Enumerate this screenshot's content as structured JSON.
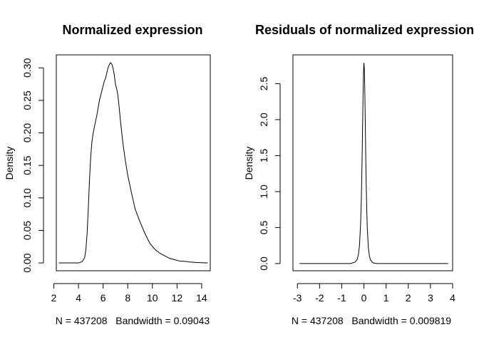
{
  "chart_data": [
    {
      "type": "line",
      "title": "Normalized expression",
      "xlabel": "N = 437208   Bandwidth = 0.09043",
      "ylabel": "Density",
      "xlim": [
        2.2,
        14.7
      ],
      "ylim": [
        -0.012,
        0.32
      ],
      "xticks": [
        2,
        4,
        6,
        8,
        10,
        12,
        14
      ],
      "xtick_labels": [
        "2",
        "4",
        "6",
        "8",
        "10",
        "12",
        "14"
      ],
      "yticks": [
        0,
        0.05,
        0.1,
        0.15,
        0.2,
        0.25,
        0.3
      ],
      "ytick_labels": [
        "0.00",
        "0.05",
        "0.10",
        "0.15",
        "0.20",
        "0.25",
        "0.30"
      ],
      "series": [
        {
          "name": "density",
          "x": [
            2.4,
            4.0,
            4.3,
            4.5,
            4.6,
            4.7,
            4.8,
            4.9,
            5.0,
            5.1,
            5.2,
            5.3,
            5.5,
            5.7,
            5.9,
            6.1,
            6.2,
            6.3,
            6.4,
            6.5,
            6.6,
            6.7,
            6.8,
            6.9,
            7.0,
            7.1,
            7.2,
            7.3,
            7.4,
            7.6,
            7.8,
            8.0,
            8.3,
            8.6,
            9.0,
            9.4,
            9.8,
            10.2,
            10.6,
            11.0,
            11.4,
            11.8,
            12.2,
            12.6,
            13.0,
            13.5,
            14.0,
            14.5
          ],
          "y": [
            0.0,
            0.0,
            0.002,
            0.008,
            0.02,
            0.045,
            0.085,
            0.13,
            0.165,
            0.188,
            0.2,
            0.21,
            0.228,
            0.25,
            0.265,
            0.28,
            0.284,
            0.292,
            0.3,
            0.305,
            0.308,
            0.306,
            0.3,
            0.29,
            0.275,
            0.268,
            0.258,
            0.24,
            0.22,
            0.185,
            0.158,
            0.135,
            0.108,
            0.083,
            0.063,
            0.045,
            0.03,
            0.021,
            0.015,
            0.011,
            0.007,
            0.005,
            0.003,
            0.0025,
            0.0015,
            0.0008,
            0.0003,
            0.0
          ]
        }
      ]
    },
    {
      "type": "line",
      "title": "Residuals of normalized expression",
      "xlabel": "N = 437208   Bandwidth = 0.009819",
      "ylabel": "Density",
      "xlim": [
        -3.2,
        4.0
      ],
      "ylim": [
        -0.1,
        2.9
      ],
      "xticks": [
        -3,
        -2,
        -1,
        0,
        1,
        2,
        3,
        4
      ],
      "xtick_labels": [
        "-3",
        "-2",
        "-1",
        "0",
        "1",
        "2",
        "3",
        "4"
      ],
      "yticks": [
        0,
        0.5,
        1,
        1.5,
        2,
        2.5
      ],
      "ytick_labels": [
        "0.0",
        "0.5",
        "1.0",
        "1.5",
        "2.0",
        "2.5"
      ],
      "series": [
        {
          "name": "density",
          "x": [
            -2.9,
            -0.6,
            -0.4,
            -0.3,
            -0.25,
            -0.2,
            -0.15,
            -0.12,
            -0.1,
            -0.08,
            -0.06,
            -0.04,
            -0.02,
            0.0,
            0.02,
            0.04,
            0.06,
            0.08,
            0.1,
            0.12,
            0.15,
            0.2,
            0.25,
            0.3,
            0.4,
            0.6,
            3.8
          ],
          "y": [
            0.0,
            0.0,
            0.02,
            0.06,
            0.12,
            0.25,
            0.55,
            0.85,
            1.15,
            1.5,
            1.9,
            2.3,
            2.65,
            2.79,
            2.7,
            2.4,
            2.0,
            1.55,
            1.15,
            0.85,
            0.5,
            0.22,
            0.1,
            0.05,
            0.01,
            0.0,
            0.0
          ]
        }
      ]
    }
  ]
}
